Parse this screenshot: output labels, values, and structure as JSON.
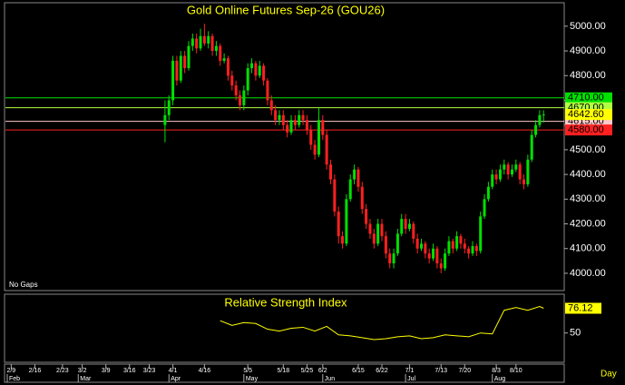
{
  "chart_data": {
    "type": "candlestick",
    "title": "Gold Online Futures Sep-26 (GOU26)",
    "note": "No Gaps",
    "x_axis_label": "Day",
    "xlim": [
      0,
      141
    ],
    "ylim": [
      3930,
      5095
    ],
    "yticks": [
      {
        "value": 4000,
        "label": "4000.00"
      },
      {
        "value": 4100,
        "label": "4100.00"
      },
      {
        "value": 4200,
        "label": "4200.00"
      },
      {
        "value": 4300,
        "label": "4300.00"
      },
      {
        "value": 4400,
        "label": "4400.00"
      },
      {
        "value": 4500,
        "label": "4500.00"
      },
      {
        "value": 4600,
        "label": "4600.00"
      },
      {
        "value": 4700,
        "label": "4700.00"
      },
      {
        "value": 4800,
        "label": "4800.00"
      },
      {
        "value": 4900,
        "label": "4900.00"
      },
      {
        "value": 5000,
        "label": "5000.00"
      }
    ],
    "xticks": [
      {
        "value": 1,
        "label": "2/9"
      },
      {
        "value": 7,
        "label": "2/16"
      },
      {
        "value": 14,
        "label": "2/23"
      },
      {
        "value": 19,
        "label": "3/2"
      },
      {
        "value": 25,
        "label": "3/9"
      },
      {
        "value": 31,
        "label": "3/16"
      },
      {
        "value": 36,
        "label": "3/23"
      },
      {
        "value": 42,
        "label": "4/1"
      },
      {
        "value": 50,
        "label": "4/16"
      },
      {
        "value": 61,
        "label": "5/5"
      },
      {
        "value": 70,
        "label": "5/18"
      },
      {
        "value": 76,
        "label": "5/25"
      },
      {
        "value": 80,
        "label": "6/2"
      },
      {
        "value": 89,
        "label": "6/15"
      },
      {
        "value": 95,
        "label": "6/22"
      },
      {
        "value": 102,
        "label": "7/1"
      },
      {
        "value": 110,
        "label": "7/13"
      },
      {
        "value": 116,
        "label": "7/20"
      },
      {
        "value": 124,
        "label": "8/3"
      },
      {
        "value": 129,
        "label": "8/10"
      }
    ],
    "month_ticks": [
      {
        "value": 0,
        "label": "Feb"
      },
      {
        "value": 18,
        "label": "Mar"
      },
      {
        "value": 41,
        "label": "Apr"
      },
      {
        "value": 60,
        "label": "May"
      },
      {
        "value": 80,
        "label": "Jun"
      },
      {
        "value": 101,
        "label": "Jul"
      },
      {
        "value": 123,
        "label": "Aug"
      }
    ],
    "up_color": "#00e000",
    "down_color": "#ff2020",
    "x": [
      40,
      41,
      42,
      43,
      44,
      45,
      46,
      47,
      48,
      49,
      50,
      51,
      52,
      53,
      54,
      55,
      56,
      57,
      58,
      59,
      60,
      61,
      62,
      63,
      64,
      65,
      66,
      67,
      68,
      69,
      70,
      71,
      72,
      73,
      74,
      75,
      76,
      77,
      78,
      79,
      80,
      81,
      82,
      83,
      84,
      85,
      86,
      87,
      88,
      89,
      90,
      91,
      92,
      93,
      94,
      95,
      96,
      97,
      98,
      99,
      100,
      101,
      102,
      103,
      104,
      105,
      106,
      107,
      108,
      109,
      110,
      111,
      112,
      113,
      114,
      115,
      116,
      117,
      118,
      119,
      120,
      121,
      122,
      123,
      124,
      125,
      126,
      127,
      128,
      129,
      130,
      131,
      132,
      133,
      134,
      135,
      136
    ],
    "ohlc": [
      [
        4600,
        4700,
        4530,
        4640
      ],
      [
        4640,
        4720,
        4620,
        4700
      ],
      [
        4700,
        4880,
        4680,
        4860
      ],
      [
        4860,
        4880,
        4760,
        4780
      ],
      [
        4780,
        4900,
        4770,
        4880
      ],
      [
        4880,
        4900,
        4810,
        4830
      ],
      [
        4830,
        4940,
        4820,
        4920
      ],
      [
        4920,
        4970,
        4900,
        4950
      ],
      [
        4950,
        4970,
        4890,
        4910
      ],
      [
        4910,
        4990,
        4900,
        4960
      ],
      [
        4960,
        5010,
        4920,
        4930
      ],
      [
        4930,
        4980,
        4910,
        4960
      ],
      [
        4960,
        4970,
        4880,
        4900
      ],
      [
        4900,
        4940,
        4880,
        4920
      ],
      [
        4920,
        4930,
        4840,
        4860
      ],
      [
        4860,
        4890,
        4850,
        4870
      ],
      [
        4870,
        4880,
        4780,
        4800
      ],
      [
        4800,
        4820,
        4740,
        4760
      ],
      [
        4760,
        4780,
        4700,
        4720
      ],
      [
        4720,
        4740,
        4660,
        4680
      ],
      [
        4680,
        4760,
        4660,
        4740
      ],
      [
        4740,
        4850,
        4720,
        4830
      ],
      [
        4830,
        4870,
        4810,
        4850
      ],
      [
        4850,
        4860,
        4780,
        4800
      ],
      [
        4800,
        4860,
        4790,
        4840
      ],
      [
        4840,
        4850,
        4760,
        4780
      ],
      [
        4780,
        4790,
        4680,
        4700
      ],
      [
        4700,
        4720,
        4640,
        4660
      ],
      [
        4660,
        4680,
        4600,
        4620
      ],
      [
        4620,
        4660,
        4600,
        4640
      ],
      [
        4640,
        4660,
        4580,
        4600
      ],
      [
        4600,
        4620,
        4550,
        4570
      ],
      [
        4570,
        4640,
        4560,
        4620
      ],
      [
        4620,
        4640,
        4580,
        4600
      ],
      [
        4600,
        4660,
        4590,
        4640
      ],
      [
        4640,
        4660,
        4600,
        4620
      ],
      [
        4620,
        4640,
        4560,
        4580
      ],
      [
        4580,
        4600,
        4500,
        4520
      ],
      [
        4520,
        4540,
        4460,
        4480
      ],
      [
        4480,
        4670,
        4470,
        4620
      ],
      [
        4620,
        4640,
        4540,
        4560
      ],
      [
        4560,
        4580,
        4420,
        4440
      ],
      [
        4440,
        4460,
        4360,
        4380
      ],
      [
        4380,
        4400,
        4230,
        4250
      ],
      [
        4250,
        4270,
        4120,
        4150
      ],
      [
        4150,
        4170,
        4100,
        4120
      ],
      [
        4120,
        4320,
        4110,
        4300
      ],
      [
        4300,
        4400,
        4290,
        4380
      ],
      [
        4380,
        4440,
        4360,
        4420
      ],
      [
        4420,
        4430,
        4330,
        4350
      ],
      [
        4350,
        4370,
        4240,
        4260
      ],
      [
        4260,
        4280,
        4180,
        4200
      ],
      [
        4200,
        4220,
        4140,
        4160
      ],
      [
        4160,
        4180,
        4100,
        4120
      ],
      [
        4120,
        4220,
        4110,
        4200
      ],
      [
        4200,
        4220,
        4130,
        4150
      ],
      [
        4150,
        4170,
        4060,
        4080
      ],
      [
        4080,
        4100,
        4020,
        4040
      ],
      [
        4040,
        4100,
        4020,
        4080
      ],
      [
        4080,
        4180,
        4070,
        4160
      ],
      [
        4160,
        4240,
        4150,
        4220
      ],
      [
        4220,
        4240,
        4160,
        4180
      ],
      [
        4180,
        4220,
        4170,
        4200
      ],
      [
        4200,
        4210,
        4120,
        4140
      ],
      [
        4140,
        4160,
        4080,
        4100
      ],
      [
        4100,
        4140,
        4090,
        4120
      ],
      [
        4120,
        4130,
        4060,
        4080
      ],
      [
        4080,
        4100,
        4040,
        4060
      ],
      [
        4060,
        4120,
        4050,
        4100
      ],
      [
        4100,
        4110,
        4020,
        4040
      ],
      [
        4040,
        4060,
        4000,
        4020
      ],
      [
        4020,
        4100,
        4010,
        4080
      ],
      [
        4080,
        4150,
        4070,
        4130
      ],
      [
        4130,
        4140,
        4080,
        4100
      ],
      [
        4100,
        4170,
        4090,
        4150
      ],
      [
        4150,
        4160,
        4100,
        4120
      ],
      [
        4120,
        4140,
        4080,
        4100
      ],
      [
        4100,
        4110,
        4060,
        4080
      ],
      [
        4080,
        4130,
        4070,
        4110
      ],
      [
        4110,
        4120,
        4070,
        4090
      ],
      [
        4090,
        4250,
        4080,
        4230
      ],
      [
        4230,
        4320,
        4220,
        4300
      ],
      [
        4300,
        4370,
        4290,
        4350
      ],
      [
        4350,
        4420,
        4340,
        4400
      ],
      [
        4400,
        4420,
        4360,
        4380
      ],
      [
        4380,
        4440,
        4370,
        4420
      ],
      [
        4420,
        4460,
        4400,
        4440
      ],
      [
        4440,
        4450,
        4380,
        4400
      ],
      [
        4400,
        4440,
        4390,
        4420
      ],
      [
        4420,
        4460,
        4410,
        4440
      ],
      [
        4440,
        4450,
        4360,
        4380
      ],
      [
        4380,
        4400,
        4340,
        4360
      ],
      [
        4360,
        4480,
        4350,
        4460
      ],
      [
        4460,
        4580,
        4450,
        4560
      ],
      [
        4560,
        4620,
        4550,
        4600
      ],
      [
        4600,
        4660,
        4590,
        4640
      ],
      [
        4640,
        4660,
        4610,
        4642.6
      ]
    ],
    "levels": [
      {
        "value": 4710,
        "label": "4710.00",
        "color": "#00e000"
      },
      {
        "value": 4670,
        "label": "4670.00",
        "color": "#b0ff40"
      },
      {
        "value": 4615,
        "label": "4615.00",
        "color": "#ffc8c8"
      },
      {
        "value": 4580,
        "label": "4580.00",
        "color": "#ff2020"
      }
    ],
    "last_price": {
      "value": 4642.6,
      "label": "4642.60",
      "color": "#ffff00"
    },
    "rsi": {
      "title": "Relative Strength Index",
      "color": "#ffff00",
      "ylim": [
        19,
        91
      ],
      "yticks": [
        50
      ],
      "x": [
        54,
        57,
        60,
        63,
        66,
        69,
        72,
        75,
        78,
        81,
        84,
        87,
        90,
        93,
        96,
        99,
        102,
        105,
        108,
        111,
        114,
        117,
        120,
        123,
        126,
        129,
        132,
        135,
        136
      ],
      "values": [
        63,
        58,
        61,
        60,
        54,
        52,
        55,
        56,
        52,
        57,
        48,
        47,
        45,
        43,
        44,
        46,
        47,
        44,
        45,
        48,
        47,
        46,
        50,
        49,
        74,
        77,
        74,
        78,
        76.12
      ]
    }
  }
}
